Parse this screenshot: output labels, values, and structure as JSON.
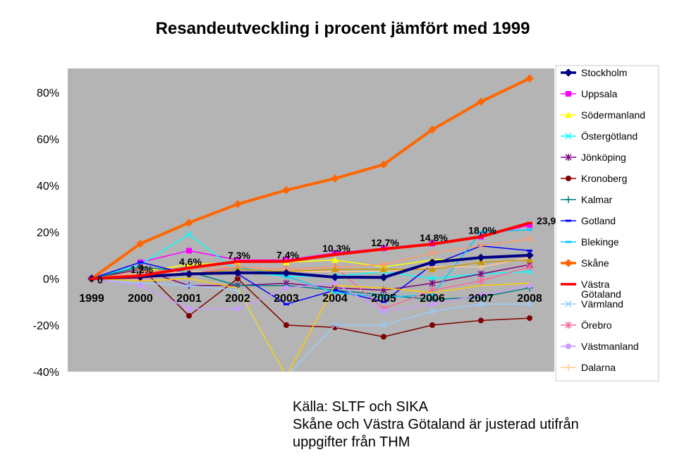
{
  "chart_data": {
    "type": "line",
    "title": "Resandeutveckling i procent jämfört med 1999",
    "xlabel": "",
    "ylabel": "",
    "categories": [
      "1999",
      "2000",
      "2001",
      "2002",
      "2003",
      "2004",
      "2005",
      "2006",
      "2007",
      "2008"
    ],
    "ylim": [
      -40,
      80
    ],
    "yticks": [
      -40,
      -20,
      0,
      20,
      40,
      60,
      80
    ],
    "ytick_labels": [
      "-40%",
      "-20%",
      "0%",
      "20%",
      "40%",
      "60%",
      "80%"
    ],
    "grid": false,
    "legend_position": "right",
    "series": [
      {
        "name": "Stockholm",
        "color": "#000080",
        "marker": "diamond",
        "values": [
          0,
          0.8,
          2,
          2.5,
          2.4,
          0.6,
          0.5,
          7,
          9,
          10
        ]
      },
      {
        "name": "Uppsala",
        "color": "#ff00ff",
        "marker": "square",
        "values": [
          0,
          7,
          12,
          8,
          8,
          11,
          13,
          15,
          18,
          23
        ]
      },
      {
        "name": "Södermanland",
        "color": "#ffff00",
        "marker": "triangle",
        "values": [
          0,
          3,
          6,
          7,
          7,
          8,
          5,
          8,
          9,
          10
        ]
      },
      {
        "name": "Östergötland",
        "color": "#00ffff",
        "marker": "x",
        "values": [
          0,
          6,
          19,
          3,
          1,
          1,
          3,
          0,
          2,
          3
        ]
      },
      {
        "name": "Jönköping",
        "color": "#800080",
        "marker": "star",
        "values": [
          0,
          4,
          -3,
          -3,
          -2,
          -4,
          -5,
          -2,
          2,
          6
        ]
      },
      {
        "name": "Kronoberg",
        "color": "#800000",
        "marker": "circle",
        "values": [
          0,
          5,
          -16,
          0,
          -20,
          -21,
          -25,
          -20,
          -18,
          -17
        ]
      },
      {
        "name": "Kalmar",
        "color": "#008080",
        "marker": "plus",
        "values": [
          0,
          5,
          3,
          -3,
          -3,
          -5,
          -7,
          -9,
          -8,
          -4
        ]
      },
      {
        "name": "Gotland",
        "color": "#0000ff",
        "marker": "dash",
        "values": [
          0,
          7,
          2,
          2,
          -11,
          -5,
          -10,
          6,
          14,
          12
        ]
      },
      {
        "name": "Blekinge",
        "color": "#00ccff",
        "marker": "dash",
        "values": [
          0,
          3,
          4,
          5,
          1,
          -6,
          -8,
          -7,
          20,
          21
        ]
      },
      {
        "name": "Skåne",
        "color": "#ff6600",
        "marker": "diamond",
        "values": [
          0,
          15,
          24,
          32,
          38,
          43,
          49,
          64,
          76,
          86
        ]
      },
      {
        "name": "Västra Götaland",
        "color": "#ff0000",
        "marker": "dash",
        "values": [
          0,
          1.2,
          4.6,
          7.3,
          7.4,
          10.3,
          12.7,
          14.8,
          18.0,
          23.9
        ]
      },
      {
        "name": "Värmland",
        "color": "#99ccff",
        "marker": "x",
        "values": [
          0,
          -2,
          -3,
          -5,
          -42,
          -20,
          -20,
          -14,
          -11,
          -11
        ]
      },
      {
        "name": "Örebro",
        "color": "#ff6699",
        "marker": "star",
        "values": [
          0,
          0,
          2,
          5,
          4,
          5,
          -13,
          -5,
          -1,
          5
        ]
      },
      {
        "name": "Västmanland",
        "color": "#cc99ff",
        "marker": "circle",
        "values": [
          0,
          -3,
          -13,
          -13,
          -4,
          -2,
          -14,
          -11,
          -7,
          -3
        ]
      },
      {
        "name": "Dalarna",
        "color": "#ffcc99",
        "marker": "plus",
        "values": [
          0,
          2,
          3,
          2,
          3,
          3,
          3,
          5,
          5,
          9
        ]
      },
      {
        "name": "",
        "color": "#ffcc00",
        "marker": "none",
        "values": [
          0,
          -1,
          0,
          -4,
          -42,
          -3,
          -4,
          -6,
          -3,
          -2
        ]
      },
      {
        "name": "",
        "color": "#ff9966",
        "marker": "x",
        "values": [
          0,
          3,
          4,
          5,
          4,
          5,
          6,
          11,
          14,
          17
        ]
      },
      {
        "name": "",
        "color": "#cc9900",
        "marker": "triangle",
        "values": [
          0,
          1,
          2,
          4,
          3,
          4,
          4,
          4,
          7,
          8
        ]
      }
    ],
    "data_labels": [
      {
        "x": "1999",
        "text": "0"
      },
      {
        "x": "2000",
        "text": "1,2%"
      },
      {
        "x": "2001",
        "text": "4,6%"
      },
      {
        "x": "2002",
        "text": "7,3%"
      },
      {
        "x": "2003",
        "text": "7,4%"
      },
      {
        "x": "2004",
        "text": "10,3%"
      },
      {
        "x": "2005",
        "text": "12,7%"
      },
      {
        "x": "2006",
        "text": "14,8%"
      },
      {
        "x": "2007",
        "text": "18,0%"
      },
      {
        "x": "2008",
        "text": "23,9"
      }
    ]
  },
  "legend_items": [
    {
      "name": "Stockholm",
      "color": "#000080",
      "marker": "diamond",
      "thick": true
    },
    {
      "name": "Uppsala",
      "color": "#ff00ff",
      "marker": "square"
    },
    {
      "name": "Södermanland",
      "color": "#ffff00",
      "marker": "triangle"
    },
    {
      "name": "Östergötland",
      "color": "#00ffff",
      "marker": "x"
    },
    {
      "name": "Jönköping",
      "color": "#800080",
      "marker": "star"
    },
    {
      "name": "Kronoberg",
      "color": "#800000",
      "marker": "circle"
    },
    {
      "name": "Kalmar",
      "color": "#008080",
      "marker": "plus"
    },
    {
      "name": "Gotland",
      "color": "#0000ff",
      "marker": "dash"
    },
    {
      "name": "Blekinge",
      "color": "#00ccff",
      "marker": "dash"
    },
    {
      "name": "Skåne",
      "color": "#ff6600",
      "marker": "diamond",
      "thick": true
    },
    {
      "name": "Västra Götaland",
      "color": "#ff0000",
      "marker": "dash",
      "thick": true,
      "lines": [
        "Västra",
        "Götaland"
      ]
    },
    {
      "name": "Värmland",
      "color": "#99ccff",
      "marker": "x"
    },
    {
      "name": "Örebro",
      "color": "#ff6699",
      "marker": "star"
    },
    {
      "name": "Västmanland",
      "color": "#cc99ff",
      "marker": "circle"
    },
    {
      "name": "Dalarna",
      "color": "#ffcc99",
      "marker": "plus"
    }
  ],
  "note": {
    "line1": "Källa: SLTF och SIKA",
    "line2": "Skåne och Västra Götaland är justerad utifrån",
    "line3": "uppgifter från THM"
  }
}
